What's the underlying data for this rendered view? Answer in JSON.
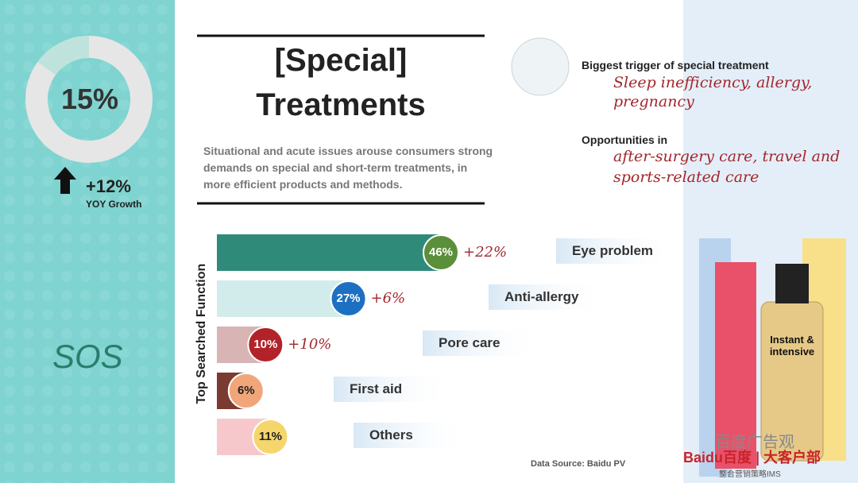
{
  "kpi": {
    "share": 15,
    "share_label": "15%",
    "growth": 12,
    "growth_label": "+12%",
    "growth_caption": "YOY Growth"
  },
  "sos": "SOS",
  "header": {
    "title_line1": "[Special]",
    "title_line2": "Treatments",
    "description": "Situational and acute issues arouse consumers strong demands on special and short-term treatments, in more efficient  products and methods."
  },
  "trigger": {
    "heading": "Biggest trigger of special treatment",
    "text": "Sleep inefficiency, allergy, pregnancy"
  },
  "opportunities": {
    "heading": "Opportunities in",
    "text": "after-surgery care, travel and sports-related care"
  },
  "product_label": "Instant & intensive",
  "source": "Data Source: Baidu PV",
  "watermark": "百度广告观",
  "logo": "Baidu百度 | 大客户部",
  "logo_sub": "整合营销策略IMS",
  "chart_data": {
    "type": "bar",
    "orientation": "horizontal",
    "y_axis_label": "Top Searched Function",
    "categories": [
      "Eye problem",
      "Anti-allergy",
      "Pore care",
      "First aid",
      "Others"
    ],
    "values": [
      46,
      27,
      10,
      6,
      11
    ],
    "value_labels": [
      "46%",
      "27%",
      "10%",
      "6%",
      "11%"
    ],
    "bar_colors": [
      "#2f8a7a",
      "#d2ecec",
      "#d8b4b5",
      "#7b3b30",
      "#f6c8cc"
    ],
    "badge_colors": [
      "#5b8f3a",
      "#1d6fc2",
      "#b22229",
      "#f1a67a",
      "#f4d66c"
    ],
    "growth_values": [
      22,
      6,
      10,
      null,
      null
    ],
    "growth_labels": [
      "+22%",
      "+6%",
      "+10%",
      null,
      null
    ]
  }
}
